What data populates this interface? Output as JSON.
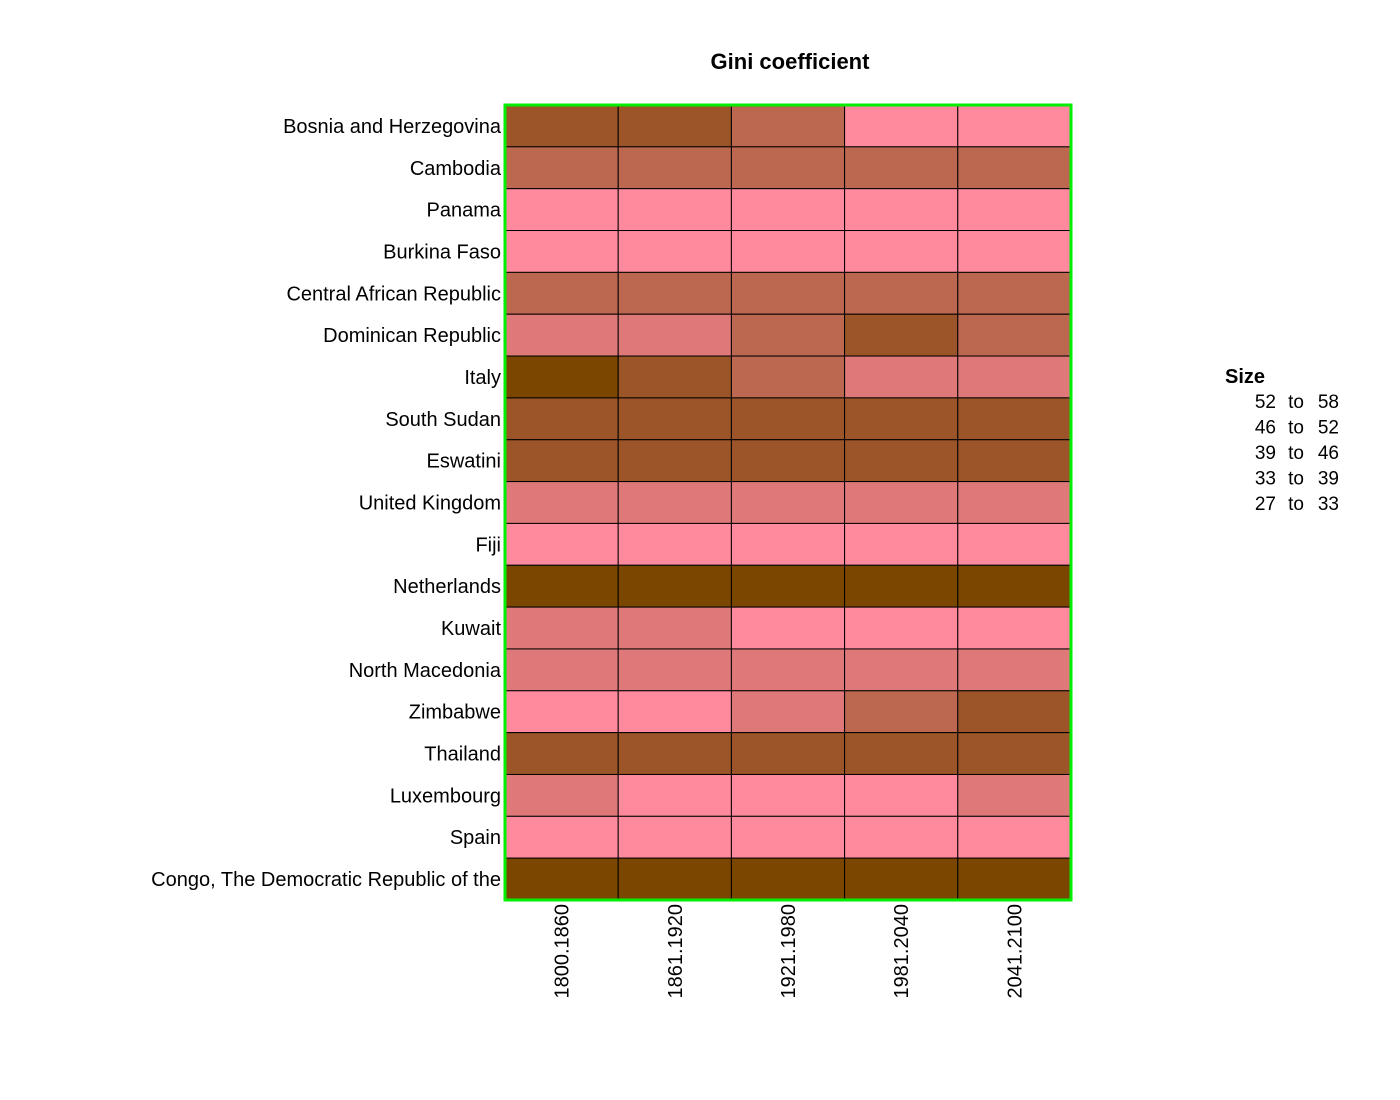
{
  "chart_data": {
    "type": "heatmap",
    "title": "Gini coefficient",
    "xlabel": "",
    "ylabel": "",
    "grid": false,
    "legend_position": "right",
    "columns": [
      "1800.1860",
      "1861.1920",
      "1921.1980",
      "1981.2040",
      "2041.2100"
    ],
    "rows": [
      "Bosnia and Herzegovina",
      "Cambodia",
      "Panama",
      "Burkina Faso",
      "Central African Republic",
      "Dominican Republic",
      "Italy",
      "South Sudan",
      "Eswatini",
      "United Kingdom",
      "Fiji",
      "Netherlands",
      "Kuwait",
      "North Macedonia",
      "Zimbabwe",
      "Thailand",
      "Luxembourg",
      "Spain",
      "Congo, The Democratic Republic of the"
    ],
    "values": [
      [
        49,
        49,
        42,
        30,
        30
      ],
      [
        42,
        42,
        42,
        42,
        42
      ],
      [
        30,
        30,
        30,
        30,
        30
      ],
      [
        30,
        30,
        30,
        30,
        30
      ],
      [
        42,
        42,
        42,
        42,
        42
      ],
      [
        36,
        36,
        42,
        49,
        42
      ],
      [
        55,
        49,
        42,
        36,
        36
      ],
      [
        49,
        49,
        49,
        49,
        49
      ],
      [
        49,
        49,
        49,
        49,
        49
      ],
      [
        36,
        36,
        36,
        36,
        36
      ],
      [
        30,
        30,
        30,
        30,
        30
      ],
      [
        55,
        55,
        55,
        55,
        55
      ],
      [
        36,
        36,
        30,
        30,
        30
      ],
      [
        36,
        36,
        36,
        36,
        36
      ],
      [
        30,
        30,
        36,
        42,
        49
      ],
      [
        49,
        49,
        49,
        49,
        49
      ],
      [
        36,
        30,
        30,
        30,
        36
      ],
      [
        30,
        30,
        30,
        30,
        30
      ],
      [
        55,
        55,
        55,
        55,
        55
      ]
    ],
    "legend": {
      "title": "Size",
      "bins": [
        {
          "from": "52",
          "to": "58",
          "min": 52,
          "max": 58,
          "color": "#7B4700"
        },
        {
          "from": "46",
          "to": "52",
          "min": 46,
          "max": 52,
          "color": "#9B5528"
        },
        {
          "from": "39",
          "to": "46",
          "min": 39,
          "max": 46,
          "color": "#BC6750"
        },
        {
          "from": "33",
          "to": "39",
          "min": 33,
          "max": 39,
          "color": "#DF7878"
        },
        {
          "from": "27",
          "to": "33",
          "min": 27,
          "max": 33,
          "color": "#FF8A9D"
        }
      ],
      "connector": "to"
    },
    "frame_color": "#00EE00",
    "cell_border_color": "#000000"
  }
}
